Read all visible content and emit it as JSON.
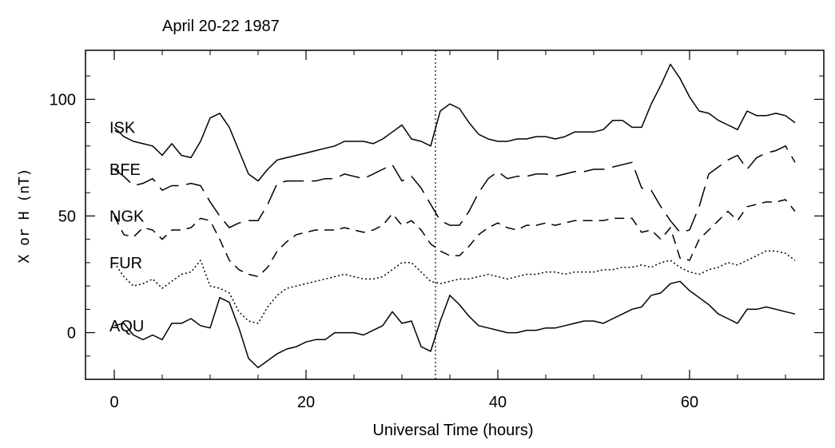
{
  "chart_data": {
    "type": "line",
    "title": "April 20-22 1987",
    "xlabel": "Universal Time (hours)",
    "ylabel": "X or H (nT)",
    "xlim": [
      -3,
      74
    ],
    "ylim": [
      -20,
      121
    ],
    "xticks": [
      0,
      20,
      40,
      60
    ],
    "yticks": [
      0,
      50,
      100
    ],
    "grid": false,
    "marker_line": {
      "x": 33.5,
      "style": "dotted"
    },
    "series": [
      {
        "name": "ISK",
        "style": "solid",
        "x": [
          0,
          1,
          2,
          3,
          4,
          5,
          6,
          7,
          8,
          9,
          10,
          11,
          12,
          13,
          14,
          15,
          16,
          17,
          18,
          19,
          20,
          21,
          22,
          23,
          24,
          25,
          26,
          27,
          28,
          29,
          30,
          31,
          32,
          33,
          34,
          35,
          36,
          37,
          38,
          39,
          40,
          41,
          42,
          43,
          44,
          45,
          46,
          47,
          48,
          49,
          50,
          51,
          52,
          53,
          54,
          55,
          56,
          57,
          58,
          59,
          60,
          61,
          62,
          63,
          64,
          65,
          66,
          67,
          68,
          69,
          70,
          71
        ],
        "y": [
          88,
          84,
          82,
          81,
          80,
          76,
          81,
          76,
          75,
          82,
          92,
          94,
          88,
          78,
          68,
          65,
          70,
          74,
          75,
          76,
          77,
          78,
          79,
          80,
          82,
          82,
          82,
          81,
          83,
          86,
          89,
          83,
          82,
          80,
          95,
          98,
          96,
          90,
          85,
          83,
          82,
          82,
          83,
          83,
          84,
          84,
          83,
          84,
          86,
          86,
          86,
          87,
          91,
          91,
          88,
          88,
          98,
          106,
          115,
          109,
          101,
          95,
          94,
          91,
          89,
          87,
          95,
          93,
          93,
          94,
          93,
          90
        ]
      },
      {
        "name": "BFE",
        "style": "long-dash",
        "x": [
          0,
          1,
          2,
          3,
          4,
          5,
          6,
          7,
          8,
          9,
          10,
          11,
          12,
          13,
          14,
          15,
          16,
          17,
          18,
          19,
          20,
          21,
          22,
          23,
          24,
          25,
          26,
          27,
          28,
          29,
          30,
          31,
          32,
          33,
          34,
          35,
          36,
          37,
          38,
          39,
          40,
          41,
          42,
          43,
          44,
          45,
          46,
          47,
          48,
          49,
          50,
          51,
          52,
          53,
          54,
          55,
          56,
          57,
          58,
          59,
          60,
          61,
          62,
          63,
          64,
          65,
          66,
          67,
          68,
          69,
          70,
          71
        ],
        "y": [
          70,
          67,
          63,
          64,
          66,
          61,
          63,
          63,
          64,
          63,
          56,
          50,
          45,
          47,
          48,
          48,
          55,
          64,
          65,
          65,
          65,
          65,
          66,
          66,
          68,
          67,
          66,
          68,
          70,
          72,
          65,
          67,
          62,
          55,
          48,
          46,
          46,
          52,
          60,
          66,
          69,
          66,
          67,
          67,
          68,
          68,
          67,
          68,
          69,
          69,
          70,
          70,
          71,
          72,
          73,
          62,
          61,
          54,
          48,
          43,
          44,
          54,
          68,
          71,
          74,
          76,
          70,
          75,
          77,
          78,
          80,
          73
        ]
      },
      {
        "name": "NGK",
        "style": "dash",
        "x": [
          0,
          1,
          2,
          3,
          4,
          5,
          6,
          7,
          8,
          9,
          10,
          11,
          12,
          13,
          14,
          15,
          16,
          17,
          18,
          19,
          20,
          21,
          22,
          23,
          24,
          25,
          26,
          27,
          28,
          29,
          30,
          31,
          32,
          33,
          34,
          35,
          36,
          37,
          38,
          39,
          40,
          41,
          42,
          43,
          44,
          45,
          46,
          47,
          48,
          49,
          50,
          51,
          52,
          53,
          54,
          55,
          56,
          57,
          58,
          59,
          60,
          61,
          62,
          63,
          64,
          65,
          66,
          67,
          68,
          69,
          70,
          71
        ],
        "y": [
          50,
          42,
          41,
          45,
          44,
          40,
          44,
          44,
          45,
          49,
          48,
          40,
          31,
          27,
          25,
          24,
          28,
          35,
          39,
          42,
          43,
          44,
          44,
          44,
          45,
          44,
          43,
          44,
          46,
          51,
          46,
          48,
          44,
          38,
          35,
          33,
          33,
          37,
          42,
          45,
          47,
          45,
          44,
          46,
          46,
          47,
          46,
          47,
          48,
          48,
          48,
          48,
          49,
          49,
          49,
          43,
          44,
          40,
          45,
          32,
          31,
          40,
          44,
          48,
          52,
          48,
          54,
          55,
          56,
          56,
          57,
          52
        ]
      },
      {
        "name": "FUR",
        "style": "dotted",
        "x": [
          0,
          1,
          2,
          3,
          4,
          5,
          6,
          7,
          8,
          9,
          10,
          11,
          12,
          13,
          14,
          15,
          16,
          17,
          18,
          19,
          20,
          21,
          22,
          23,
          24,
          25,
          26,
          27,
          28,
          29,
          30,
          31,
          32,
          33,
          34,
          35,
          36,
          37,
          38,
          39,
          40,
          41,
          42,
          43,
          44,
          45,
          46,
          47,
          48,
          49,
          50,
          51,
          52,
          53,
          54,
          55,
          56,
          57,
          58,
          59,
          60,
          61,
          62,
          63,
          64,
          65,
          66,
          67,
          68,
          69,
          70,
          71
        ],
        "y": [
          30,
          24,
          20,
          21,
          23,
          19,
          22,
          25,
          26,
          31,
          20,
          19,
          17,
          9,
          5,
          4,
          11,
          16,
          19,
          20,
          21,
          22,
          23,
          24,
          25,
          24,
          23,
          23,
          24,
          27,
          30,
          30,
          26,
          22,
          21,
          22,
          23,
          23,
          24,
          25,
          24,
          23,
          24,
          25,
          25,
          26,
          26,
          25,
          26,
          26,
          26,
          27,
          27,
          28,
          28,
          29,
          28,
          30,
          31,
          28,
          26,
          25,
          27,
          28,
          30,
          29,
          31,
          33,
          35,
          35,
          34,
          31
        ]
      },
      {
        "name": "AQU",
        "style": "solid",
        "x": [
          0,
          1,
          2,
          3,
          4,
          5,
          6,
          7,
          8,
          9,
          10,
          11,
          12,
          13,
          14,
          15,
          16,
          17,
          18,
          19,
          20,
          21,
          22,
          23,
          24,
          25,
          26,
          27,
          28,
          29,
          30,
          31,
          32,
          33,
          34,
          35,
          36,
          37,
          38,
          39,
          40,
          41,
          42,
          43,
          44,
          45,
          46,
          47,
          48,
          49,
          50,
          51,
          52,
          53,
          54,
          55,
          56,
          57,
          58,
          59,
          60,
          61,
          62,
          63,
          64,
          65,
          66,
          67,
          68,
          69,
          70,
          71
        ],
        "y": [
          3,
          4,
          -1,
          -3,
          -1,
          -3,
          4,
          4,
          6,
          3,
          2,
          15,
          13,
          2,
          -11,
          -15,
          -12,
          -9,
          -7,
          -6,
          -4,
          -3,
          -3,
          0,
          0,
          0,
          -1,
          1,
          3,
          9,
          4,
          5,
          -6,
          -8,
          5,
          16,
          12,
          7,
          3,
          2,
          1,
          0,
          0,
          1,
          1,
          2,
          2,
          3,
          4,
          5,
          5,
          4,
          6,
          8,
          10,
          11,
          16,
          17,
          21,
          22,
          18,
          15,
          12,
          8,
          6,
          4,
          10,
          10,
          11,
          10,
          9,
          8
        ]
      }
    ]
  }
}
